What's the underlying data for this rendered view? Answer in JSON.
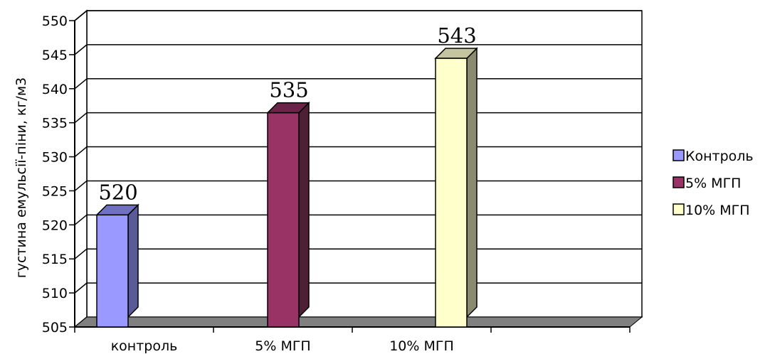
{
  "chart_data": {
    "type": "bar",
    "style": "3d-column",
    "categories": [
      "контроль",
      "5% МГП",
      "10% МГП"
    ],
    "values": [
      520,
      535,
      543
    ],
    "data_labels": [
      "520",
      "535",
      "543"
    ],
    "ylabel": "густина емульсії-піни, кг/м3",
    "ylim": [
      505,
      550
    ],
    "yticks": [
      505,
      510,
      515,
      520,
      525,
      530,
      535,
      540,
      545,
      550
    ],
    "grid": true,
    "legend_position": "right",
    "legend": [
      {
        "name": "Контроль",
        "color": "#9999ff"
      },
      {
        "name": "5% МГП",
        "color": "#993366"
      },
      {
        "name": "10% МГП",
        "color": "#ffffcc"
      }
    ],
    "colors": {
      "bar_fronts": [
        "#9999ff",
        "#993366",
        "#ffffcc"
      ],
      "bar_sides": [
        "#5a5a99",
        "#4f1f35",
        "#8a8a6e"
      ],
      "bar_tops": [
        "#7070c0",
        "#6a2447",
        "#c4c4a0"
      ],
      "floor": "#808080",
      "grid": "#000000"
    }
  }
}
